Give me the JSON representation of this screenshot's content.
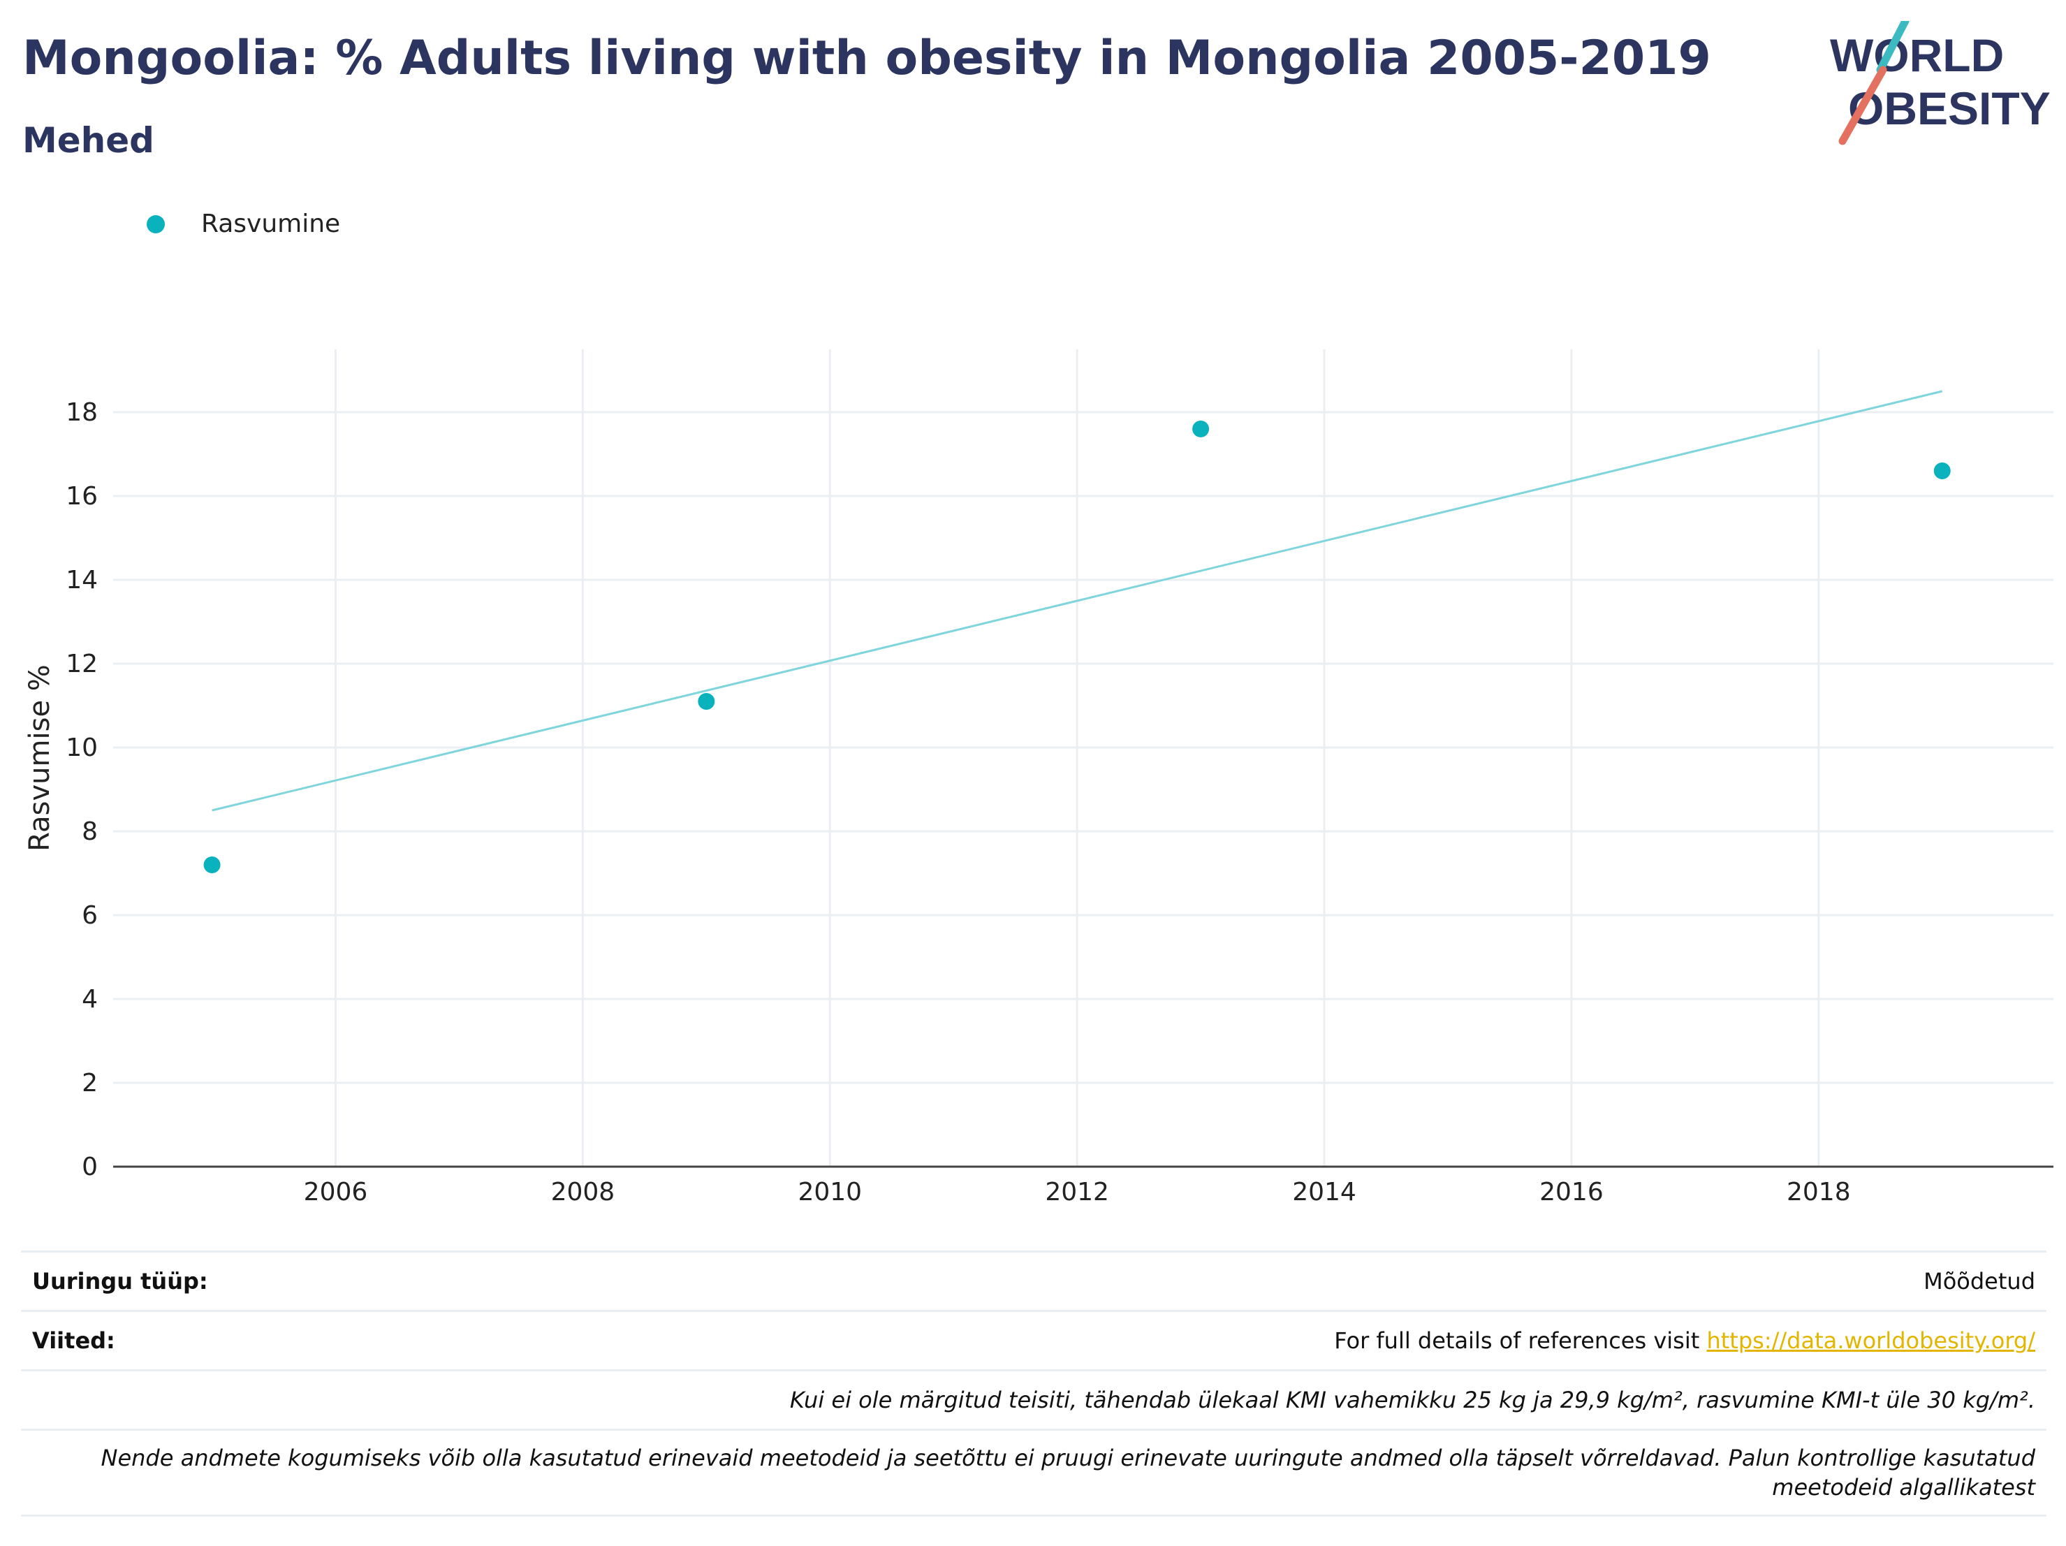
{
  "header": {
    "title": "Mongoolia: % Adults living with obesity in Mongolia 2005-2019",
    "subtitle": "Mehed",
    "logo_line1": "WORLD",
    "logo_line2": "OBESITY"
  },
  "legend": {
    "label": "Rasvumine"
  },
  "colors": {
    "points": "#0ab2be",
    "trend": "#7fd5dc",
    "title": "#2b3560",
    "link": "#e2b600"
  },
  "chart_data": {
    "type": "scatter",
    "title": "Mongoolia: % Adults living with obesity in Mongolia 2005-2019",
    "subtitle": "Mehed",
    "ylabel": "Rasvumise %",
    "xlabel": "",
    "xlim": [
      2004.2,
      2019.9
    ],
    "ylim": [
      0,
      19.5
    ],
    "x_ticks": [
      2006,
      2008,
      2010,
      2012,
      2014,
      2016,
      2018
    ],
    "y_ticks": [
      0,
      2,
      4,
      6,
      8,
      10,
      12,
      14,
      16,
      18
    ],
    "grid": true,
    "legend_position": "top-left",
    "series": [
      {
        "name": "Rasvumine",
        "x": [
          2005,
          2009,
          2013,
          2019
        ],
        "y": [
          7.2,
          11.1,
          17.6,
          16.6
        ]
      }
    ],
    "trendline": {
      "x": [
        2005,
        2019
      ],
      "y": [
        8.5,
        18.5
      ]
    }
  },
  "info": {
    "survey_type_label": "Uuringu tüüp:",
    "survey_type_value": "Mõõdetud",
    "references_label": "Viited:",
    "references_text": "For full details of references visit ",
    "references_link": "https://data.worldobesity.org/",
    "note1": "Kui ei ole märgitud teisiti, tähendab ülekaal KMI vahemikku 25 kg ja 29,9 kg/m², rasvumine KMI-t üle 30 kg/m².",
    "note2": "Nende andmete kogumiseks võib olla kasutatud erinevaid meetodeid ja seetõttu ei pruugi erinevate uuringute andmed olla täpselt võrreldavad. Palun kontrollige kasutatud meetodeid algallikatest"
  }
}
